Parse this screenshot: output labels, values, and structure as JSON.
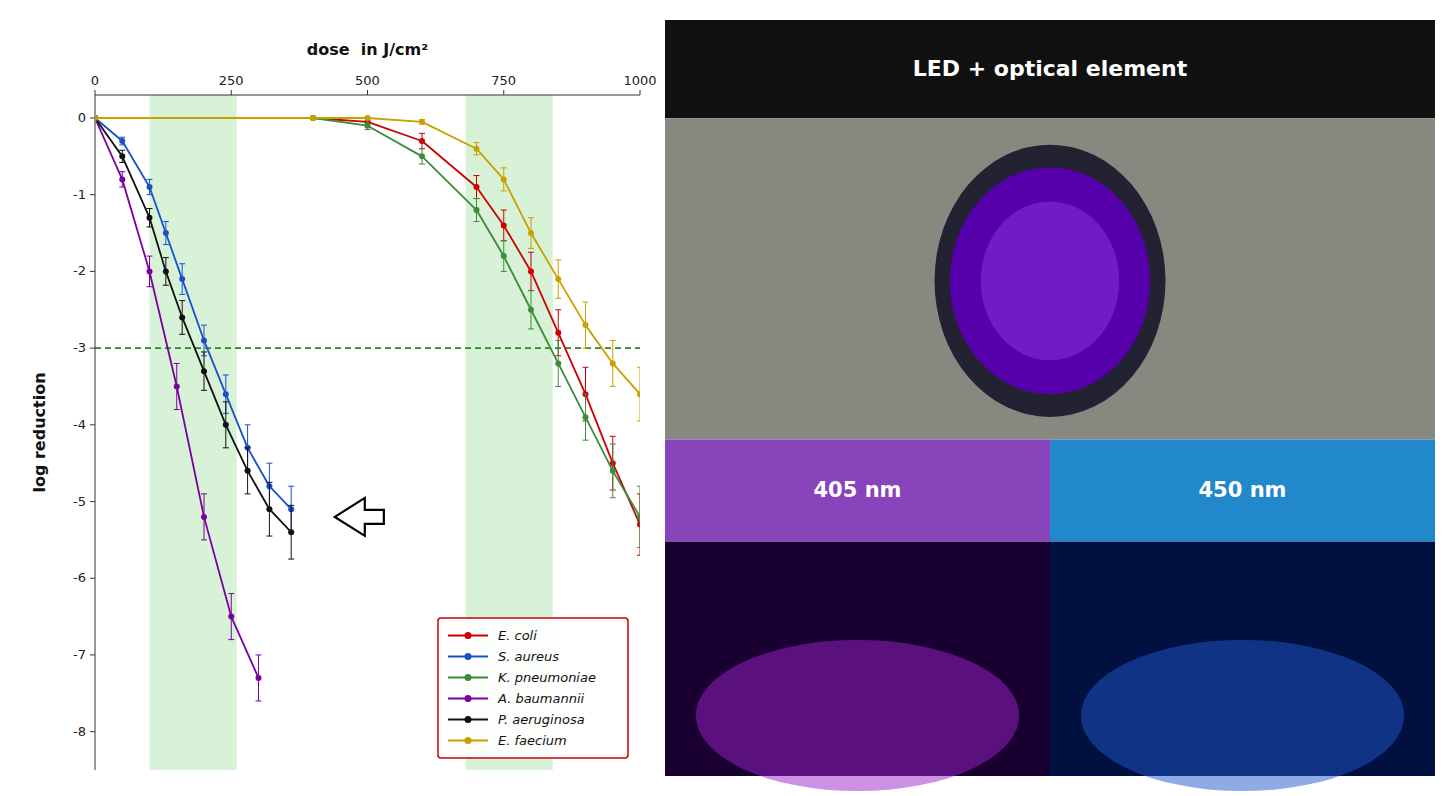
{
  "chart_data": {
    "type": "line",
    "x_label": "dose  in J/cm²",
    "y_label": "log reduction",
    "xlim": [
      0,
      1000
    ],
    "ylim": [
      -8.5,
      0.3
    ],
    "xticks": [
      0,
      250,
      500,
      750,
      1000
    ],
    "yticks": [
      0,
      -1,
      -2,
      -3,
      -4,
      -5,
      -6,
      -7,
      -8
    ],
    "grid": false,
    "legend": "lower right",
    "marker": "circle",
    "shaded_x": [
      [
        100,
        260
      ],
      [
        680,
        840
      ]
    ],
    "reference_y": -3,
    "arrow": {
      "x": 530,
      "y": -5.2,
      "dx": -90
    },
    "series": [
      {
        "name": "E. coli",
        "color": "#cc0000",
        "x": [
          0,
          400,
          500,
          600,
          700,
          750,
          800,
          850,
          900,
          950,
          1000
        ],
        "values": [
          0,
          0,
          -0.05,
          -0.3,
          -0.9,
          -1.4,
          -2.0,
          -2.8,
          -3.6,
          -4.5,
          -5.3
        ],
        "errors": [
          0,
          0,
          0,
          0.1,
          0.15,
          0.2,
          0.25,
          0.3,
          0.35,
          0.35,
          0.4
        ]
      },
      {
        "name": "S. aureus",
        "color": "#1a4fcc",
        "x": [
          0,
          50,
          100,
          130,
          160,
          200,
          240,
          280,
          320,
          360
        ],
        "values": [
          0,
          -0.3,
          -0.9,
          -1.5,
          -2.1,
          -2.9,
          -3.6,
          -4.3,
          -4.8,
          -5.1
        ],
        "errors": [
          0,
          0.05,
          0.1,
          0.15,
          0.2,
          0.2,
          0.25,
          0.3,
          0.3,
          0.3
        ]
      },
      {
        "name": "K. pneumoniae",
        "color": "#3a8c3a",
        "x": [
          0,
          400,
          500,
          600,
          700,
          750,
          800,
          850,
          900,
          950,
          1000
        ],
        "values": [
          0,
          0,
          -0.1,
          -0.5,
          -1.2,
          -1.8,
          -2.5,
          -3.2,
          -3.9,
          -4.6,
          -5.2
        ],
        "errors": [
          0,
          0,
          0.05,
          0.1,
          0.15,
          0.2,
          0.25,
          0.3,
          0.3,
          0.35,
          0.4
        ]
      },
      {
        "name": "A. baumannii",
        "color": "#7B00A0",
        "x": [
          0,
          50,
          100,
          150,
          200,
          250,
          300
        ],
        "values": [
          0,
          -0.8,
          -2.0,
          -3.5,
          -5.2,
          -6.5,
          -7.3
        ],
        "errors": [
          0,
          0.1,
          0.2,
          0.3,
          0.3,
          0.3,
          0.3
        ]
      },
      {
        "name": "P. aeruginosa",
        "color": "#111111",
        "x": [
          0,
          50,
          100,
          130,
          160,
          200,
          240,
          280,
          320,
          360
        ],
        "values": [
          0,
          -0.5,
          -1.3,
          -2.0,
          -2.6,
          -3.3,
          -4.0,
          -4.6,
          -5.1,
          -5.4
        ],
        "errors": [
          0,
          0.08,
          0.12,
          0.18,
          0.22,
          0.25,
          0.3,
          0.3,
          0.35,
          0.35
        ]
      },
      {
        "name": "E. faecium",
        "color": "#C8A000",
        "x": [
          0,
          400,
          500,
          600,
          700,
          750,
          800,
          850,
          900,
          950,
          1000
        ],
        "values": [
          0,
          0.0,
          0.0,
          -0.05,
          -0.4,
          -0.8,
          -1.5,
          -2.1,
          -2.7,
          -3.2,
          -3.6
        ],
        "errors": [
          0,
          0,
          0,
          0.03,
          0.08,
          0.15,
          0.2,
          0.25,
          0.3,
          0.3,
          0.35
        ]
      }
    ],
    "panel_title": "LED + optical element",
    "panel_labels": [
      "405 nm",
      "450 nm"
    ]
  }
}
